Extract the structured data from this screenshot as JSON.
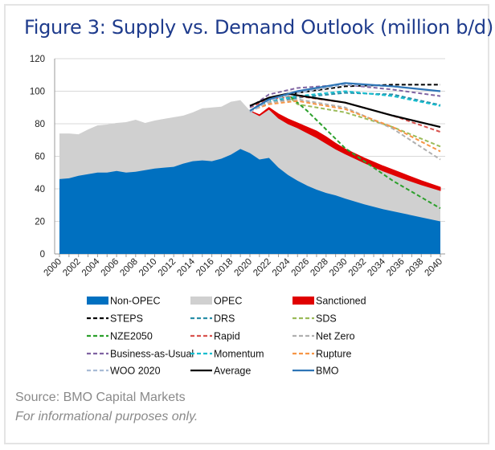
{
  "title": "Figure 3: Supply vs. Demand Outlook (million b/d)",
  "source": "Source: BMO Capital Markets",
  "disclaimer": "For informational purposes only.",
  "chart_data": {
    "type": "area",
    "title": "Figure 3: Supply vs. Demand Outlook (million b/d)",
    "xlabel": "",
    "ylabel": "",
    "xlim": [
      2000,
      2040
    ],
    "ylim": [
      0,
      120
    ],
    "yticks": [
      0,
      20,
      40,
      60,
      80,
      100,
      120
    ],
    "xticks": [
      2000,
      2002,
      2004,
      2006,
      2008,
      2010,
      2012,
      2014,
      2016,
      2018,
      2020,
      2022,
      2024,
      2026,
      2028,
      2030,
      2032,
      2034,
      2036,
      2038,
      2040
    ],
    "grid": "horizontal",
    "legend_position": "bottom",
    "areas": [
      {
        "name": "Non-OPEC",
        "color": "#0070c0",
        "x": [
          2000,
          2001,
          2002,
          2003,
          2004,
          2005,
          2006,
          2007,
          2008,
          2009,
          2010,
          2011,
          2012,
          2013,
          2014,
          2015,
          2016,
          2017,
          2018,
          2019,
          2020,
          2021,
          2022,
          2023,
          2024,
          2025,
          2026,
          2027,
          2028,
          2029,
          2030,
          2032,
          2034,
          2036,
          2038,
          2040
        ],
        "y": [
          46,
          46.5,
          48,
          49,
          50,
          50,
          51,
          50,
          50.5,
          51.5,
          52.5,
          53,
          53.5,
          55.5,
          57,
          57.5,
          57,
          58.5,
          61,
          64.5,
          62,
          58,
          59,
          53,
          48.5,
          45,
          42,
          39.5,
          37.5,
          36,
          34,
          30.5,
          27.5,
          25,
          22.5,
          20
        ]
      },
      {
        "name": "OPEC",
        "color": "#d0d0d0",
        "x": [
          2000,
          2001,
          2002,
          2003,
          2004,
          2005,
          2006,
          2007,
          2008,
          2009,
          2010,
          2011,
          2012,
          2013,
          2014,
          2015,
          2016,
          2017,
          2018,
          2019,
          2020,
          2021,
          2022,
          2023,
          2024,
          2025,
          2026,
          2027,
          2028,
          2029,
          2030,
          2032,
          2034,
          2036,
          2038,
          2040
        ],
        "total": [
          74,
          74,
          73.5,
          76.5,
          79,
          79.5,
          80.5,
          81,
          82.5,
          80.5,
          82,
          83,
          84,
          85,
          87,
          89.5,
          90,
          90.5,
          93.5,
          94.5,
          88,
          85,
          89,
          83.5,
          80,
          77.5,
          74.5,
          71.5,
          68,
          64.5,
          61.5,
          56,
          51,
          46.5,
          42.5,
          39
        ]
      }
    ],
    "sanctioned": {
      "name": "Sanctioned",
      "color": "#e00000",
      "x": [
        2020,
        2021,
        2022,
        2023,
        2024,
        2025,
        2026,
        2027,
        2028,
        2029,
        2030,
        2032,
        2034,
        2036,
        2038,
        2040
      ],
      "lower": [
        88,
        85,
        89,
        83.5,
        80,
        77.5,
        74.5,
        71.5,
        68,
        64.5,
        61.5,
        56,
        51,
        46.5,
        42.5,
        39
      ],
      "upper": [
        88,
        85.5,
        90,
        86,
        83,
        80.5,
        78,
        75.5,
        72,
        68,
        64.5,
        59,
        54,
        49.5,
        45,
        41
      ]
    },
    "series": [
      {
        "name": "STEPS",
        "color": "#000000",
        "dash": true,
        "x": [
          2020,
          2022,
          2025,
          2030,
          2035,
          2040
        ],
        "y": [
          91,
          96,
          99,
          103,
          104,
          104
        ]
      },
      {
        "name": "DRS",
        "color": "#2a8fa8",
        "dash": true,
        "x": [
          2020,
          2022,
          2025,
          2030,
          2035,
          2040
        ],
        "y": [
          88,
          93,
          96,
          99,
          98,
          91.5
        ]
      },
      {
        "name": "SDS",
        "color": "#9bbb59",
        "dash": true,
        "x": [
          2020,
          2022,
          2024,
          2025,
          2030,
          2035,
          2040
        ],
        "y": [
          88,
          94,
          97,
          92,
          87,
          78,
          66
        ]
      },
      {
        "name": "NZE2050",
        "color": "#2ca02c",
        "dash": true,
        "x": [
          2020,
          2022,
          2024,
          2026,
          2030,
          2035,
          2040
        ],
        "y": [
          88,
          94,
          98,
          88,
          65,
          45,
          28
        ]
      },
      {
        "name": "Rapid",
        "color": "#d9534f",
        "dash": true,
        "x": [
          2020,
          2022,
          2025,
          2030,
          2035,
          2040
        ],
        "y": [
          90,
          95,
          97,
          93,
          85,
          75
        ]
      },
      {
        "name": "Net Zero",
        "color": "#b0b0b0",
        "dash": true,
        "x": [
          2020,
          2022,
          2025,
          2030,
          2035,
          2040
        ],
        "y": [
          88,
          93,
          95,
          90,
          77,
          58
        ]
      },
      {
        "name": "Business-as-Usual",
        "color": "#8064a2",
        "dash": true,
        "x": [
          2020,
          2022,
          2025,
          2030,
          2035,
          2040
        ],
        "y": [
          90,
          98,
          102,
          104,
          101,
          97
        ]
      },
      {
        "name": "Momentum",
        "color": "#17becf",
        "dash": true,
        "x": [
          2020,
          2022,
          2025,
          2030,
          2035,
          2040
        ],
        "y": [
          88,
          94,
          97,
          100,
          97,
          91
        ]
      },
      {
        "name": "Rupture",
        "color": "#f79646",
        "dash": true,
        "x": [
          2020,
          2022,
          2025,
          2030,
          2035,
          2040
        ],
        "y": [
          88,
          92,
          94,
          89,
          78,
          63
        ]
      },
      {
        "name": "WOO 2020",
        "color": "#a9bcd6",
        "dash": true,
        "x": [
          2020,
          2022,
          2025,
          2030,
          2035,
          2040
        ],
        "y": [
          87,
          94,
          99,
          104,
          103,
          100
        ]
      },
      {
        "name": "Average",
        "color": "#000000",
        "dash": false,
        "x": [
          2020,
          2022,
          2024,
          2025,
          2030,
          2035,
          2040
        ],
        "y": [
          91,
          96,
          98.5,
          97.5,
          93,
          85,
          78
        ]
      },
      {
        "name": "BMO",
        "color": "#2e75b6",
        "dash": false,
        "x": [
          2020,
          2022,
          2025,
          2030,
          2035,
          2040
        ],
        "y": [
          88,
          95,
          100,
          105,
          103,
          100
        ]
      }
    ],
    "legend": [
      "Non-OPEC",
      "OPEC",
      "Sanctioned",
      "STEPS",
      "DRS",
      "SDS",
      "NZE2050",
      "Rapid",
      "Net Zero",
      "Business-as-Usual",
      "Momentum",
      "Rupture",
      "WOO 2020",
      "Average",
      "BMO"
    ]
  }
}
